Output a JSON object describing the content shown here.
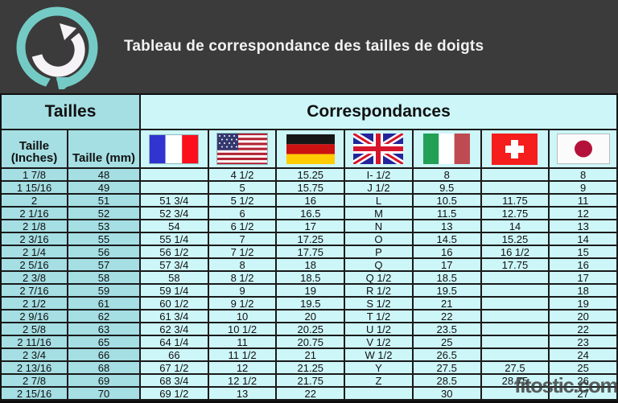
{
  "header": {
    "title": "Tableau de correspondance des tailles de doigts",
    "logo_icon": "circular-arrow-logo"
  },
  "table": {
    "group_headers": {
      "tailles": "Tailles",
      "correspondances": "Correspondances"
    },
    "size_column_headers": {
      "inches": "Taille (Inches)",
      "mm": "Taille (mm)"
    },
    "flag_columns": [
      "france",
      "usa",
      "germany",
      "uk",
      "italy",
      "switzerland",
      "japan"
    ],
    "rows": [
      [
        "1 7/8",
        "48",
        "",
        "4 1/2",
        "15.25",
        "I- 1/2",
        "8",
        "",
        "8"
      ],
      [
        "1 15/16",
        "49",
        "",
        "5",
        "15.75",
        "J 1/2",
        "9.5",
        "",
        "9"
      ],
      [
        "2",
        "51",
        "51 3/4",
        "5 1/2",
        "16",
        "L",
        "10.5",
        "11.75",
        "11"
      ],
      [
        "2 1/16",
        "52",
        "52 3/4",
        "6",
        "16.5",
        "M",
        "11.5",
        "12.75",
        "12"
      ],
      [
        "2 1/8",
        "53",
        "54",
        "6 1/2",
        "17",
        "N",
        "13",
        "14",
        "13"
      ],
      [
        "2 3/16",
        "55",
        "55 1/4",
        "7",
        "17.25",
        "O",
        "14.5",
        "15.25",
        "14"
      ],
      [
        "2 1/4",
        "56",
        "56 1/2",
        "7 1/2",
        "17.75",
        "P",
        "16",
        "16 1/2",
        "15"
      ],
      [
        "2 5/16",
        "57",
        "57 3/4",
        "8",
        "18",
        "Q",
        "17",
        "17.75",
        "16"
      ],
      [
        "2 3/8",
        "58",
        "58",
        "8 1/2",
        "18.5",
        "Q 1/2",
        "18.5",
        "",
        "17"
      ],
      [
        "2 7/16",
        "59",
        "59 1/4",
        "9",
        "19",
        "R 1/2",
        "19.5",
        "",
        "18"
      ],
      [
        "2 1/2",
        "61",
        "60 1/2",
        "9 1/2",
        "19.5",
        "S 1/2",
        "21",
        "",
        "19"
      ],
      [
        "2 9/16",
        "62",
        "61 3/4",
        "10",
        "20",
        "T 1/2",
        "22",
        "",
        "20"
      ],
      [
        "2 5/8",
        "63",
        "62 3/4",
        "10 1/2",
        "20.25",
        "U 1/2",
        "23.5",
        "",
        "22"
      ],
      [
        "2 11/16",
        "65",
        "64 1/4",
        "11",
        "20.75",
        "V 1/2",
        "25",
        "",
        "23"
      ],
      [
        "2 3/4",
        "66",
        "66",
        "11 1/2",
        "21",
        "W 1/2",
        "26.5",
        "",
        "24"
      ],
      [
        "2 13/16",
        "68",
        "67 1/2",
        "12",
        "21.25",
        "Y",
        "27.5",
        "27.5",
        "25"
      ],
      [
        "2 7/8",
        "69",
        "68 3/4",
        "12 1/2",
        "21.75",
        "Z",
        "28.5",
        "28.75",
        "26"
      ],
      [
        "2 15/16",
        "70",
        "69 1/2",
        "13",
        "22",
        "",
        "30",
        "",
        "27"
      ]
    ]
  },
  "watermark": "fitostic.com",
  "colors": {
    "header_bg": "#3b3b3b",
    "teal_dark": "#a5dee3",
    "teal_light": "#cdf6f8",
    "logo_teal": "#74cbc6"
  }
}
